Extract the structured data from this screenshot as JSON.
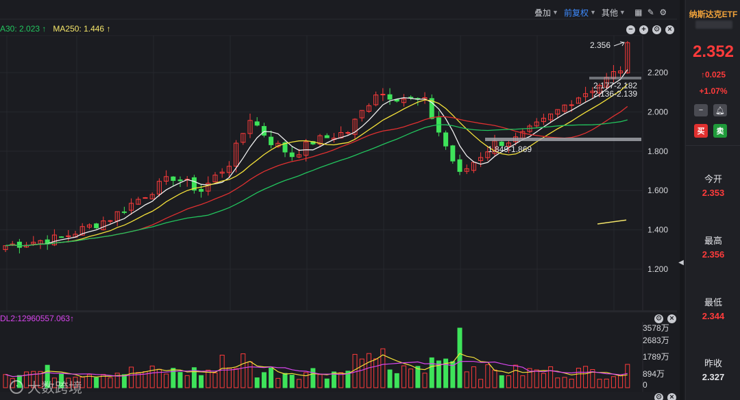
{
  "toolbar": {
    "overlay_label": "叠加",
    "adjust_label": "前复权",
    "other_label": "其他",
    "icons": [
      "grid-icon",
      "pen-icon",
      "settings-icon"
    ]
  },
  "main_legend": {
    "ma30": "A30: 2.023 ↑",
    "ma250": "MA250: 1.446 ↑"
  },
  "vol_legend": "DL2:12960557.063↑",
  "watermark": "大数跨境",
  "price_axis": [
    "2.200",
    "2.000",
    "1.800",
    "1.600",
    "1.400",
    "1.200"
  ],
  "volume_axis": [
    "3578万",
    "2683万",
    "1789万",
    "894万",
    "0"
  ],
  "annotations": {
    "high": "2.356",
    "range_top": "2.177-2.182",
    "range_mid": "2.136-2.139",
    "range_low": "1.849-1.869"
  },
  "sidebar": {
    "title": "纳斯达克ETF",
    "price": "2.352",
    "change": "↑0.025",
    "change_pct": "+1.07%",
    "buy_label": "买",
    "sell_label": "卖",
    "open_label": "今开",
    "open_value": "2.353",
    "high_label": "最高",
    "high_value": "2.356",
    "low_label": "最低",
    "low_value": "2.344",
    "prev_close_label": "昨收",
    "prev_close_value": "2.327"
  },
  "colors": {
    "up": "#ff3b3b",
    "down": "#3ee35a",
    "ma_white": "#f1f1f1",
    "ma_yellow": "#f5e23a",
    "ma_red": "#e03030",
    "ma_green": "#22c55e",
    "ma_250": "#f5e66a",
    "vol_ma_yellow": "#f5e23a",
    "vol_ma_magenta": "#d946ef"
  },
  "chart_data": {
    "type": "candlestick",
    "y_range": [
      1.2,
      2.356
    ],
    "price_high": 2.356,
    "last_close": 2.352,
    "prev_close": 2.327,
    "open": 2.353,
    "low": 2.344,
    "volume_range": [
      0,
      3578
    ],
    "volume_unit": "万"
  }
}
